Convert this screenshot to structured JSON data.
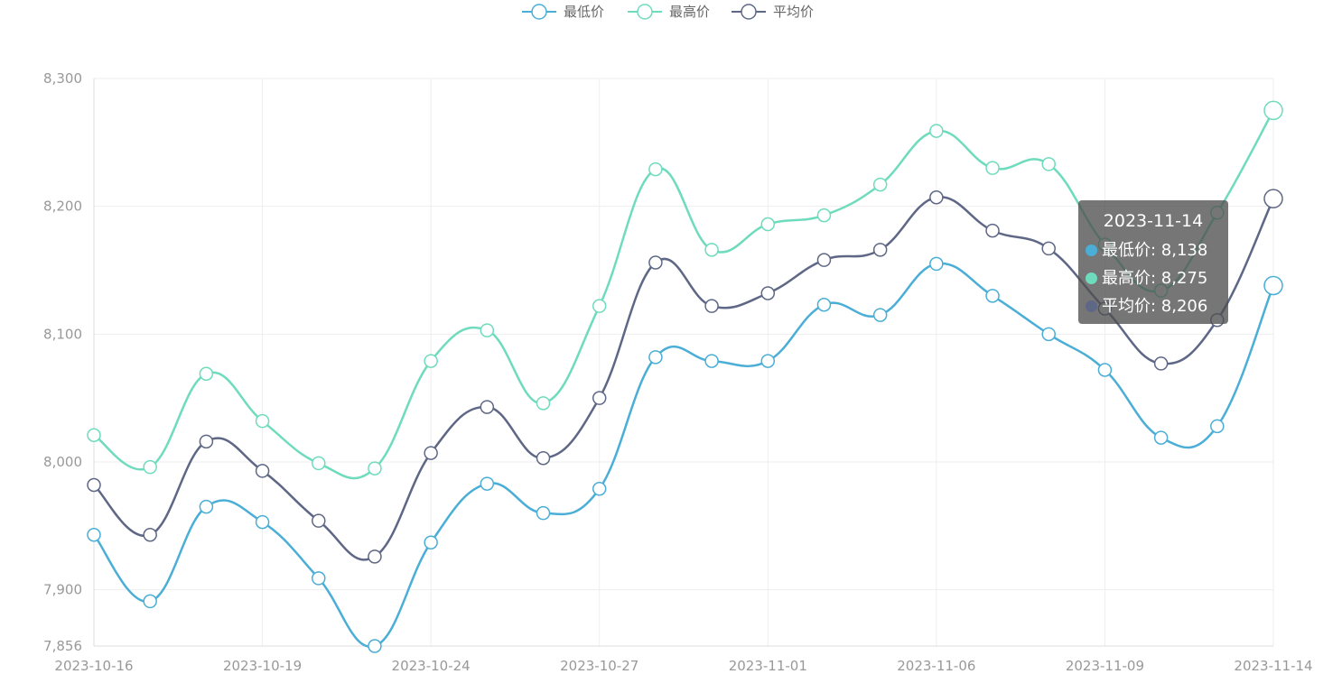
{
  "chart_data": {
    "type": "line",
    "title": "",
    "xlabel": "",
    "ylabel": "",
    "ylim": [
      7856,
      8300
    ],
    "y_ticks": [
      "7,856",
      "7,900",
      "8,000",
      "8,100",
      "8,200",
      "8,300"
    ],
    "y_tick_values": [
      7856,
      7900,
      8000,
      8100,
      8200,
      8300
    ],
    "x_tick_labels": [
      "2023-10-16",
      "2023-10-19",
      "2023-10-24",
      "2023-10-27",
      "2023-11-01",
      "2023-11-06",
      "2023-11-09",
      "2023-11-14"
    ],
    "x_tick_indices": [
      0,
      3,
      6,
      9,
      12,
      15,
      18,
      21
    ],
    "x": [
      "2023-10-16",
      "2023-10-17",
      "2023-10-18",
      "2023-10-19",
      "2023-10-20",
      "2023-10-23",
      "2023-10-24",
      "2023-10-25",
      "2023-10-26",
      "2023-10-27",
      "2023-10-30",
      "2023-10-31",
      "2023-11-01",
      "2023-11-02",
      "2023-11-03",
      "2023-11-06",
      "2023-11-07",
      "2023-11-08",
      "2023-11-09",
      "2023-11-10",
      "2023-11-13",
      "2023-11-14"
    ],
    "grid": true,
    "legend_position": "top-center",
    "smooth": true,
    "series": [
      {
        "name": "最低价",
        "color": "#4aaed6",
        "values": [
          7943,
          7891,
          7965,
          7953,
          7909,
          7856,
          7937,
          7983,
          7960,
          7979,
          8082,
          8079,
          8079,
          8123,
          8115,
          8155,
          8130,
          8100,
          8072,
          8019,
          8028,
          8138
        ]
      },
      {
        "name": "最高价",
        "color": "#6fdbbd",
        "values": [
          8021,
          7996,
          8069,
          8032,
          7999,
          7995,
          8079,
          8103,
          8046,
          8122,
          8229,
          8166,
          8186,
          8193,
          8217,
          8259,
          8230,
          8233,
          8170,
          8134,
          8195,
          8275
        ]
      },
      {
        "name": "平均价",
        "color": "#5e6785",
        "values": [
          7982,
          7943,
          8016,
          7993,
          7954,
          7926,
          8007,
          8043,
          8003,
          8050,
          8156,
          8122,
          8132,
          8158,
          8166,
          8207,
          8181,
          8167,
          8120,
          8077,
          8111,
          8206
        ]
      }
    ],
    "tooltip": {
      "title": "2023-11-14",
      "rows": [
        {
          "label": "最低价: 8,138",
          "color": "#4aaed6"
        },
        {
          "label": "最高价: 8,275",
          "color": "#6fdbbd"
        },
        {
          "label": "平均价: 8,206",
          "color": "#5e6785"
        }
      ]
    }
  }
}
